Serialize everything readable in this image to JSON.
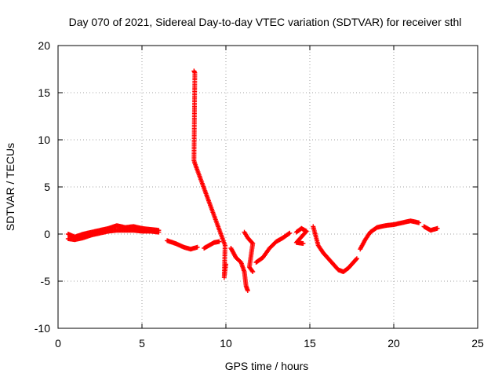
{
  "chart_data": {
    "type": "scatter",
    "title": "Day 070 of 2021, Sidereal Day-to-day VTEC variation (SDTVAR) for receiver sthl",
    "xlabel": "GPS time / hours",
    "ylabel": "SDTVAR / TECUs",
    "xlim": [
      0,
      25
    ],
    "ylim": [
      -10,
      20
    ],
    "xticks": [
      0,
      5,
      10,
      15,
      20,
      25
    ],
    "yticks": [
      -10,
      -5,
      0,
      5,
      10,
      15,
      20
    ],
    "grid": true,
    "marker": "plus",
    "colors": {
      "points": "#ff0000",
      "grid": "#a0a0a0",
      "axes": "#000000"
    },
    "series": [
      {
        "name": "SDTVAR",
        "segments": [
          [
            [
              0.6,
              0.0
            ],
            [
              1.0,
              -0.3
            ],
            [
              1.5,
              0.0
            ],
            [
              2.0,
              0.2
            ],
            [
              2.5,
              0.4
            ],
            [
              3.0,
              0.6
            ],
            [
              3.5,
              0.9
            ],
            [
              4.0,
              0.7
            ],
            [
              4.5,
              0.8
            ],
            [
              5.0,
              0.6
            ],
            [
              5.5,
              0.5
            ],
            [
              6.0,
              0.4
            ]
          ],
          [
            [
              0.6,
              -0.5
            ],
            [
              1.0,
              -0.6
            ],
            [
              1.5,
              -0.4
            ],
            [
              2.0,
              -0.1
            ],
            [
              2.5,
              0.1
            ],
            [
              3.0,
              0.3
            ],
            [
              3.5,
              0.4
            ],
            [
              4.0,
              0.4
            ],
            [
              4.5,
              0.4
            ],
            [
              5.0,
              0.3
            ],
            [
              5.5,
              0.3
            ],
            [
              6.0,
              0.2
            ]
          ],
          [
            [
              6.5,
              -0.7
            ],
            [
              7.0,
              -1.0
            ],
            [
              7.5,
              -1.4
            ],
            [
              7.9,
              -1.6
            ],
            [
              8.3,
              -1.4
            ]
          ],
          [
            [
              8.7,
              -1.5
            ],
            [
              9.0,
              -1.2
            ],
            [
              9.3,
              -0.9
            ],
            [
              9.6,
              -0.8
            ]
          ],
          [
            [
              10.3,
              -1.5
            ],
            [
              10.6,
              -2.5
            ],
            [
              10.9,
              -3.0
            ],
            [
              11.1,
              -4.0
            ],
            [
              11.2,
              -5.5
            ],
            [
              11.3,
              -6.0
            ]
          ],
          [
            [
              11.1,
              0.2
            ],
            [
              11.3,
              -0.4
            ],
            [
              11.6,
              -1.0
            ],
            [
              11.4,
              -3.5
            ],
            [
              11.6,
              -4.0
            ]
          ],
          [
            [
              11.8,
              -3.0
            ],
            [
              12.2,
              -2.5
            ],
            [
              12.6,
              -1.5
            ],
            [
              13.0,
              -0.8
            ],
            [
              13.4,
              -0.4
            ],
            [
              13.8,
              0.1
            ]
          ],
          [
            [
              14.2,
              0.2
            ],
            [
              14.5,
              0.6
            ],
            [
              14.8,
              0.3
            ],
            [
              14.2,
              -0.9
            ],
            [
              14.6,
              -1.0
            ]
          ],
          [
            [
              15.2,
              0.8
            ],
            [
              15.5,
              -1.2
            ],
            [
              15.8,
              -2.0
            ],
            [
              16.1,
              -2.6
            ],
            [
              16.4,
              -3.2
            ],
            [
              16.7,
              -3.8
            ],
            [
              17.0,
              -4.0
            ],
            [
              17.3,
              -3.6
            ],
            [
              17.6,
              -3.0
            ],
            [
              17.8,
              -2.6
            ]
          ],
          [
            [
              18.0,
              -1.6
            ],
            [
              18.3,
              -0.6
            ],
            [
              18.6,
              0.2
            ],
            [
              19.0,
              0.7
            ],
            [
              19.5,
              0.9
            ],
            [
              20.0,
              1.0
            ],
            [
              20.5,
              1.2
            ],
            [
              21.0,
              1.4
            ],
            [
              21.5,
              1.2
            ]
          ],
          [
            [
              21.8,
              0.8
            ],
            [
              22.2,
              0.4
            ],
            [
              22.6,
              0.6
            ]
          ],
          [
            [
              8.1,
              17.3
            ],
            [
              8.15,
              17.1
            ],
            [
              8.1,
              7.8
            ],
            [
              8.15,
              7.5
            ],
            [
              9.95,
              -1.2
            ],
            [
              9.9,
              -4.6
            ],
            [
              10.0,
              -3.2
            ]
          ]
        ]
      }
    ]
  }
}
